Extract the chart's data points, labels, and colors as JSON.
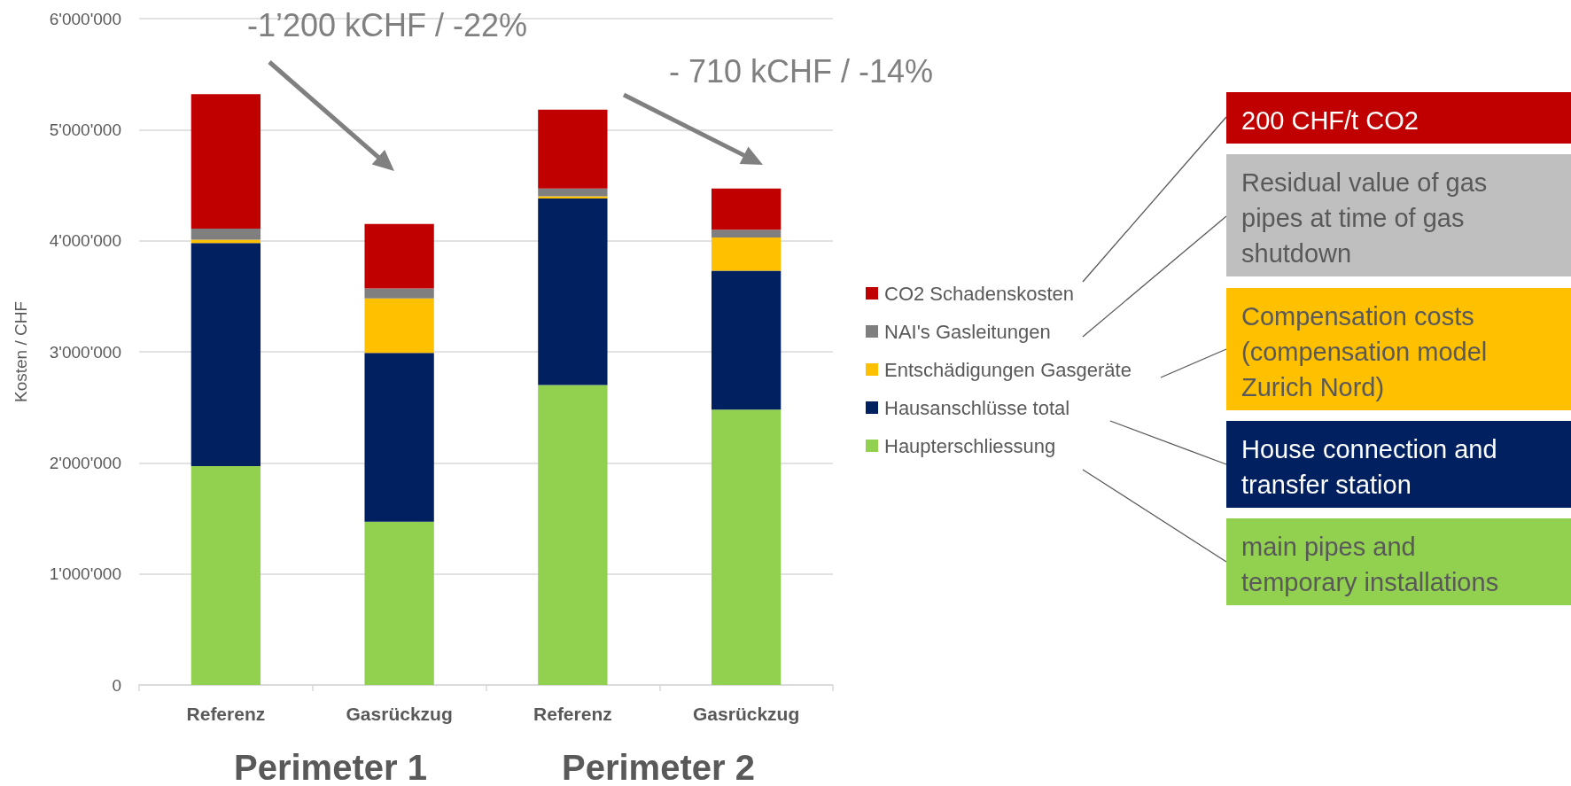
{
  "chart_data": {
    "type": "bar",
    "stacked": true,
    "ylabel": "Kosten / CHF",
    "categories": [
      "Referenz",
      "Gasrückzug",
      "Referenz",
      "Gasrückzug"
    ],
    "series": [
      {
        "name": "Haupterschliessung",
        "color": "#92d050",
        "values": [
          1970000,
          1470000,
          2700000,
          2480000
        ]
      },
      {
        "name": "Hausanschlüsse total",
        "color": "#002060",
        "values": [
          2010000,
          1520000,
          1680000,
          1250000
        ]
      },
      {
        "name": "Entschädigungen Gasgeräte",
        "color": "#ffc000",
        "values": [
          30000,
          490000,
          20000,
          300000
        ]
      },
      {
        "name": "NAI's Gasleitungen",
        "color": "#7f7f7f",
        "values": [
          100000,
          90000,
          70000,
          70000
        ]
      },
      {
        "name": "CO2 Schadenskosten",
        "color": "#c00000",
        "values": [
          1210000,
          580000,
          710000,
          370000
        ]
      }
    ],
    "ylim": [
      0,
      6000000
    ],
    "yticks": [
      0,
      {
        "value": 1000000,
        "label": "1'000'000"
      },
      {
        "value": 2000000,
        "label": "2'000'000"
      },
      {
        "value": 3000000,
        "label": "3'000'000"
      },
      {
        "value": 4000000,
        "label": "4'000'000"
      },
      {
        "value": 5000000,
        "label": "5'000'000"
      },
      {
        "value": 6000000,
        "label": "6'000'000"
      }
    ],
    "grid": "y",
    "legend": "right",
    "annotations": [
      "-1’200 kCHF / -22%",
      "- 710 kCHF / -14%",
      "Perimeter 1",
      "Perimeter 2",
      "200 CHF/t CO2",
      "Residual value of gas pipes at time of gas shutdown",
      "Compensation costs (compensation model Zurich Nord)",
      "House connection and transfer station",
      "main pipes and temporary installations"
    ]
  }
}
